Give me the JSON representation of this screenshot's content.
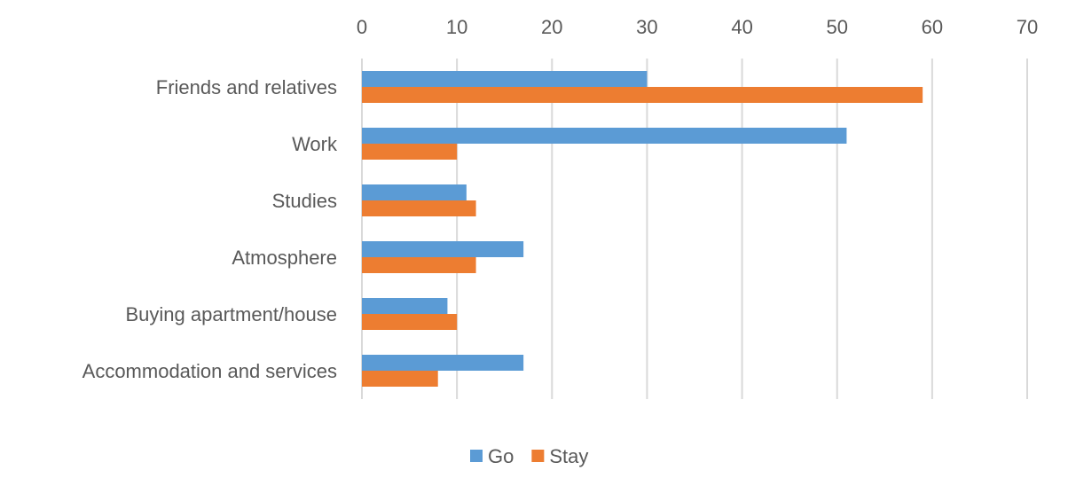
{
  "chart_data": {
    "type": "bar",
    "orientation": "horizontal",
    "categories": [
      "Friends and relatives",
      "Work",
      "Studies",
      "Atmosphere",
      "Buying apartment/house",
      "Accommodation and services"
    ],
    "series": [
      {
        "name": "Go",
        "color": "#5b9bd5",
        "values": [
          30,
          51,
          11,
          17,
          9,
          17
        ]
      },
      {
        "name": "Stay",
        "color": "#ed7d31",
        "values": [
          59,
          10,
          12,
          12,
          10,
          8
        ]
      }
    ],
    "xlim": [
      0,
      70
    ],
    "xticks": [
      0,
      10,
      20,
      30,
      40,
      50,
      60,
      70
    ],
    "x_axis_position": "top",
    "grid": true,
    "legend_position": "bottom"
  }
}
